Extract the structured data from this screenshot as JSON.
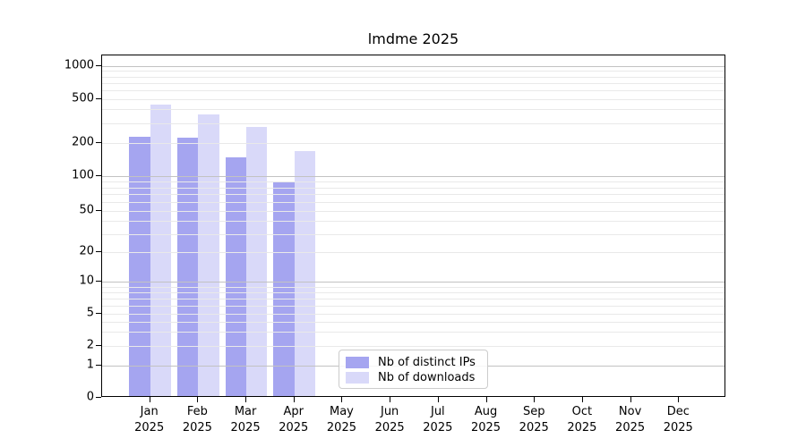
{
  "title": "lmdme 2025",
  "chart_data": {
    "type": "bar",
    "title": "lmdme 2025",
    "yscale": "symlog",
    "grid": true,
    "legend_position": "lower center",
    "categories": [
      "Jan",
      "Feb",
      "Mar",
      "Apr",
      "May",
      "Jun",
      "Jul",
      "Aug",
      "Sep",
      "Oct",
      "Nov",
      "Dec"
    ],
    "x_tick_year": "2025",
    "y_ticks": [
      0,
      1,
      2,
      5,
      10,
      20,
      50,
      100,
      200,
      500,
      1000
    ],
    "ylim": [
      0,
      1250
    ],
    "series": [
      {
        "name": "Nb of distinct IPs",
        "color": "#a5a5f0",
        "values": [
          218,
          212,
          142,
          85,
          null,
          null,
          null,
          null,
          null,
          null,
          null,
          null
        ]
      },
      {
        "name": "Nb of downloads",
        "color": "#d9d9f9",
        "values": [
          425,
          350,
          270,
          163,
          null,
          null,
          null,
          null,
          null,
          null,
          null,
          null
        ]
      }
    ]
  },
  "colors": {
    "background": "#ffffff",
    "spine": "#000000",
    "grid_major": "#c2c2c2",
    "grid_minor": "#e9e9e9",
    "text": "#000000",
    "legend_border": "#cccccc"
  }
}
